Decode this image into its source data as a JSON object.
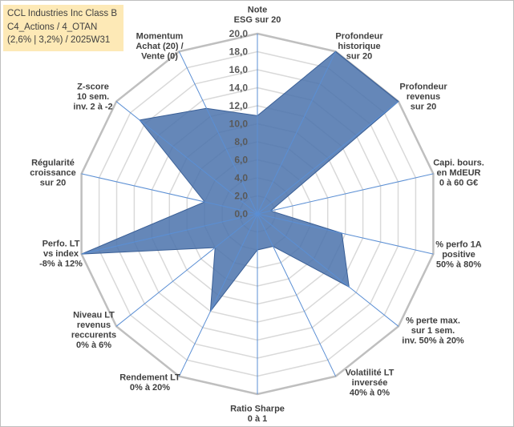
{
  "header": {
    "line1": "CCL Industries Inc Class B",
    "line2": "C4_Actions / 4_OTAN",
    "line3": "(2,6% | 3,2%) / 2025W31"
  },
  "colors": {
    "fill": "#4a72ac",
    "stroke": "#3a5f96",
    "grid": "#d9d9d9",
    "outer_ring": "#bfbfbf",
    "spoke": "#5b8fd4",
    "header_bg": "#fde9b6"
  },
  "chart_data": {
    "type": "radar",
    "rmax": 20,
    "tick_step": 2,
    "tick_labels": [
      "0,0",
      "2,0",
      "4,0",
      "6,0",
      "8,0",
      "10,0",
      "12,0",
      "14,0",
      "16,0",
      "18,0",
      "20,0"
    ],
    "grid": true,
    "categories": [
      [
        "Note",
        "ESG sur 20"
      ],
      [
        "Profondeur",
        "historique",
        "sur 20"
      ],
      [
        "Profondeur",
        "revenus",
        "sur 20"
      ],
      [
        "Capi. bours.",
        "en MdEUR",
        "0 à 60 G€"
      ],
      [
        "% perfo 1A",
        "positive",
        "50% à 80%"
      ],
      [
        "% perte max.",
        "sur 1 sem.",
        "inv. 50% à 20%"
      ],
      [
        "Volatilité LT",
        "inversée",
        "40% à 0%"
      ],
      [
        "Ratio Sharpe",
        "0 à 1"
      ],
      [
        "Rendement LT",
        "0% à 20%"
      ],
      [
        "Niveau LT",
        "revenus",
        "reccurents",
        "0% à 6%"
      ],
      [
        "Perfo. LT",
        "vs index",
        "-8% à 12%"
      ],
      [
        "Régularité",
        "croissance",
        "sur 20"
      ],
      [
        "Z-score",
        "10 sem.",
        "inv. 2 à -2"
      ],
      [
        "Momentum",
        "Achat (20) /",
        "Vente (0)"
      ]
    ],
    "values": [
      10.9,
      20,
      20,
      1.5,
      9.6,
      13,
      4,
      4,
      12,
      6,
      20,
      6,
      16.7,
      13
    ]
  }
}
